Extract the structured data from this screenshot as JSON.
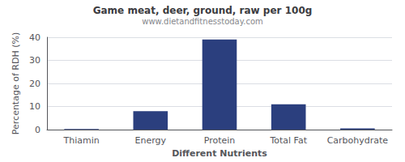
{
  "chart_data": {
    "type": "bar",
    "title": "Game meat, deer, ground, raw per 100g",
    "subtitle": "www.dietandfitnesstoday.com",
    "xlabel": "Different Nutrients",
    "ylabel": "Percentage of RDH (%)",
    "categories": [
      "Thiamin",
      "Energy",
      "Protein",
      "Total Fat",
      "Carbohydrate"
    ],
    "values": [
      0.3,
      8,
      39,
      11,
      0.5
    ],
    "color": "#2b3f7e",
    "ylim": [
      0,
      40
    ],
    "yticks": [
      0,
      10,
      20,
      30,
      40
    ],
    "grid": true
  }
}
